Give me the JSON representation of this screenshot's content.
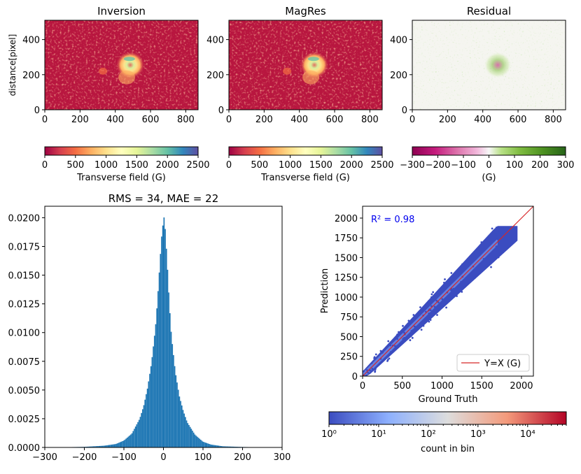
{
  "chart_data": [
    {
      "type": "heatmap",
      "title": "Inversion",
      "ylabel": "distance[pixel]",
      "xlim": [
        0,
        870
      ],
      "ylim": [
        0,
        510
      ],
      "xticks": [
        "0",
        "200",
        "400",
        "600",
        "800"
      ],
      "yticks": [
        "0",
        "200",
        "400"
      ],
      "colormap": "Spectral_r",
      "colorbar": {
        "label": "Transverse field (G)",
        "range": [
          0,
          2500
        ],
        "ticks": [
          "0",
          "500",
          "1000",
          "1500",
          "2000",
          "2500"
        ]
      }
    },
    {
      "type": "heatmap",
      "title": "MagRes",
      "xlim": [
        0,
        870
      ],
      "ylim": [
        0,
        510
      ],
      "xticks": [
        "0",
        "200",
        "400",
        "600",
        "800"
      ],
      "yticks": [
        "0",
        "200",
        "400"
      ],
      "colormap": "Spectral_r",
      "colorbar": {
        "label": "Transverse field (G)",
        "range": [
          0,
          2500
        ],
        "ticks": [
          "0",
          "500",
          "1000",
          "1500",
          "2000",
          "2500"
        ]
      }
    },
    {
      "type": "heatmap",
      "title": "Residual",
      "xlim": [
        0,
        870
      ],
      "ylim": [
        0,
        510
      ],
      "xticks": [
        "0",
        "200",
        "400",
        "600",
        "800"
      ],
      "yticks": [
        "0",
        "200",
        "400"
      ],
      "colormap": "PiYG",
      "colorbar": {
        "label": "(G)",
        "range": [
          -300,
          300
        ],
        "ticks": [
          "−300",
          "−200",
          "−100",
          "0",
          "100",
          "200",
          "300"
        ]
      }
    },
    {
      "type": "bar",
      "title": "RMS = 34, MAE = 22",
      "xlim": [
        -300,
        300
      ],
      "ylim": [
        0,
        0.021
      ],
      "xticks": [
        "−300",
        "−200",
        "−100",
        "0",
        "100",
        "200",
        "300"
      ],
      "yticks": [
        "0.0000",
        "0.0025",
        "0.0050",
        "0.0075",
        "0.0100",
        "0.0125",
        "0.0150",
        "0.0175",
        "0.0200"
      ],
      "color": "#1f77b4",
      "x": [
        -300,
        -250,
        -200,
        -150,
        -120,
        -100,
        -80,
        -60,
        -50,
        -40,
        -30,
        -20,
        -15,
        -10,
        -5,
        0,
        2,
        5,
        10,
        15,
        20,
        30,
        40,
        50,
        60,
        80,
        100,
        120,
        150,
        200,
        250,
        300
      ],
      "values": [
        0.0,
        2e-05,
        5e-05,
        0.00015,
        0.0003,
        0.0006,
        0.0012,
        0.0025,
        0.0036,
        0.0052,
        0.0074,
        0.0105,
        0.0128,
        0.0155,
        0.0182,
        0.0198,
        0.0201,
        0.0188,
        0.0158,
        0.0125,
        0.0098,
        0.0066,
        0.0045,
        0.0032,
        0.0022,
        0.0011,
        0.0005,
        0.00025,
        0.0001,
        4e-05,
        1e-05,
        0.0
      ]
    },
    {
      "type": "scatter",
      "xlabel": "Ground Truth",
      "ylabel": "Prediction",
      "xlim": [
        0,
        2150
      ],
      "ylim": [
        0,
        2150
      ],
      "xticks": [
        "0",
        "500",
        "1000",
        "1500",
        "2000"
      ],
      "yticks": [
        "0",
        "250",
        "500",
        "750",
        "1000",
        "1250",
        "1500",
        "1750",
        "2000"
      ],
      "annotation": "R² = 0.98",
      "legend": {
        "label": "Y=X (G)",
        "position": "lower-right",
        "color": "#d62728"
      },
      "colormap": "coolwarm",
      "colorbar": {
        "label": "count in bin",
        "scale": "log",
        "range": [
          1,
          60000
        ],
        "ticks": [
          "10⁰",
          "10¹",
          "10²",
          "10³",
          "10⁴"
        ]
      }
    }
  ]
}
